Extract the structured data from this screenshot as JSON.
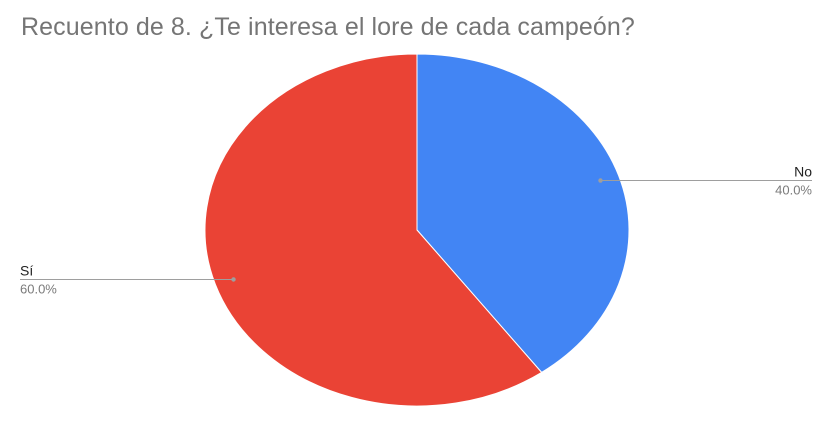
{
  "chart_data": {
    "type": "pie",
    "title": "Recuento de 8. ¿Te interesa el lore de cada campeón?",
    "slices": [
      {
        "label": "No",
        "value": 40.0,
        "percent_label": "40.0%",
        "color": "#4285f4"
      },
      {
        "label": "Sí",
        "value": 60.0,
        "percent_label": "60.0%",
        "color": "#ea4335"
      }
    ],
    "start_angle_deg": 0,
    "direction": "clockwise",
    "legend": "callout-labels",
    "leader_line_color": "#9e9e9e"
  }
}
